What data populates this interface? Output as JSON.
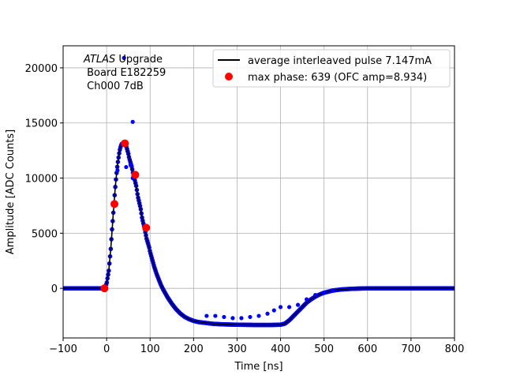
{
  "chart_data": {
    "type": "scatter",
    "title": "",
    "xlabel": "Time [ns]",
    "ylabel": "Amplitude [ADC Counts]",
    "xlim": [
      -100,
      800
    ],
    "ylim": [
      -4500,
      22000
    ],
    "xticks": [
      -100,
      0,
      100,
      200,
      300,
      400,
      500,
      600,
      700,
      800
    ],
    "xtick_labels": [
      "−100",
      "0",
      "100",
      "200",
      "300",
      "400",
      "500",
      "600",
      "700",
      "800"
    ],
    "yticks": [
      0,
      5000,
      10000,
      15000,
      20000
    ],
    "ytick_labels": [
      "0",
      "5000",
      "10000",
      "15000",
      "20000"
    ],
    "grid": true,
    "legend_position": "top-right",
    "annotation": {
      "brand": "ATLAS",
      "line1_rest": " Upgrade",
      "line2": " Board E182259",
      "line3": " Ch000 7dB"
    },
    "series": [
      {
        "name": "average interleaved pulse 7.147mA",
        "kind": "line",
        "color": "#000000",
        "x": [
          -100,
          -10,
          -5,
          0,
          5,
          10,
          15,
          20,
          25,
          30,
          35,
          40,
          45,
          50,
          55,
          60,
          65,
          70,
          75,
          80,
          85,
          90,
          95,
          100,
          110,
          120,
          130,
          140,
          150,
          160,
          170,
          180,
          190,
          200,
          220,
          240,
          260,
          280,
          300,
          320,
          340,
          360,
          380,
          400,
          410,
          420,
          430,
          440,
          450,
          460,
          470,
          480,
          490,
          500,
          520,
          540,
          560,
          580,
          600,
          620,
          650,
          700,
          800
        ],
        "y": [
          0,
          0,
          50,
          400,
          1600,
          3800,
          6600,
          9200,
          11200,
          12500,
          13100,
          13200,
          12900,
          12200,
          11400,
          10600,
          9800,
          8800,
          7800,
          6800,
          5800,
          4900,
          4100,
          3300,
          1900,
          800,
          -100,
          -800,
          -1400,
          -1900,
          -2300,
          -2600,
          -2800,
          -2950,
          -3100,
          -3200,
          -3250,
          -3280,
          -3300,
          -3310,
          -3320,
          -3320,
          -3320,
          -3300,
          -3200,
          -2900,
          -2500,
          -2100,
          -1700,
          -1300,
          -1000,
          -750,
          -550,
          -400,
          -200,
          -100,
          -50,
          -20,
          0,
          0,
          0,
          0,
          0
        ]
      },
      {
        "name": "",
        "kind": "samples",
        "color": "#0000ff",
        "x": [
          -100,
          -80,
          -60,
          -40,
          -20,
          -10,
          -5,
          0,
          2,
          5,
          8,
          10,
          12,
          15,
          18,
          20,
          22,
          25,
          28,
          30,
          33,
          35,
          38,
          40,
          42,
          45,
          48,
          50,
          52,
          55,
          58,
          60,
          62,
          65,
          68,
          70,
          72,
          75,
          78,
          80,
          82,
          85,
          88,
          90,
          92,
          95,
          98,
          100,
          105,
          110,
          115,
          120,
          125,
          130,
          135,
          140,
          150,
          160,
          170,
          180,
          190,
          200,
          210,
          220,
          230,
          240,
          250,
          260,
          270,
          280,
          290,
          300,
          310,
          320,
          330,
          340,
          350,
          360,
          370,
          380,
          390,
          400,
          410,
          420,
          430,
          440,
          450,
          460,
          470,
          480,
          490,
          500,
          510,
          520,
          530,
          540,
          560,
          580,
          600,
          620,
          650,
          700,
          750,
          800
        ],
        "y": [
          0,
          0,
          0,
          0,
          0,
          0,
          50,
          400,
          900,
          1600,
          2900,
          3800,
          5100,
          6600,
          8200,
          9200,
          10100,
          11200,
          12000,
          12500,
          12950,
          13100,
          13180,
          13200,
          13100,
          12900,
          12500,
          12200,
          11800,
          11400,
          11000,
          10600,
          10200,
          9800,
          9300,
          8800,
          8300,
          7800,
          7300,
          6800,
          6300,
          5800,
          5300,
          4900,
          4500,
          4100,
          3700,
          3300,
          2600,
          1900,
          1300,
          800,
          300,
          -100,
          -450,
          -800,
          -1400,
          -1900,
          -2300,
          -2600,
          -2800,
          -2950,
          -3050,
          -3100,
          -3150,
          -3200,
          -3230,
          -3250,
          -3270,
          -3280,
          -3290,
          -3300,
          -3305,
          -3310,
          -3315,
          -3320,
          -3320,
          -3320,
          -3320,
          -3320,
          -3310,
          -3300,
          -3200,
          -2900,
          -2500,
          -2100,
          -1700,
          -1300,
          -1000,
          -750,
          -550,
          -400,
          -300,
          -200,
          -150,
          -100,
          -50,
          -20,
          0,
          0,
          0,
          0,
          0,
          0
        ]
      },
      {
        "name": "",
        "kind": "outliers",
        "color": "#0000ff",
        "x": [
          25,
          40,
          60,
          55,
          45,
          60,
          230,
          250,
          270,
          290,
          310,
          330,
          350,
          370,
          385,
          400,
          420,
          440,
          460,
          480,
          500,
          520
        ],
        "y": [
          10700,
          20900,
          15100,
          11200,
          11000,
          10000,
          -2500,
          -2500,
          -2600,
          -2700,
          -2700,
          -2600,
          -2500,
          -2300,
          -2000,
          -1700,
          -1700,
          -1500,
          -1000,
          -600,
          -400,
          -200
        ]
      },
      {
        "name": "max phase: 639 (OFC amp=8.934)",
        "kind": "max_phase",
        "color": "#ff0000",
        "x": [
          -5,
          18,
          42,
          66,
          91
        ],
        "y": [
          0,
          7650,
          13150,
          10300,
          5500
        ]
      }
    ]
  }
}
